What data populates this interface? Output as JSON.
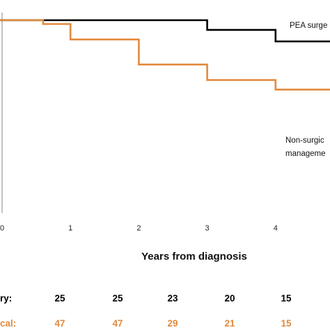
{
  "chart_data": {
    "type": "line",
    "xlabel": "Years from diagnosis",
    "ylabel": "",
    "xlim": [
      0,
      5
    ],
    "ylim": [
      0,
      1
    ],
    "x_ticks": [
      "0",
      "1",
      "2",
      "3",
      "4"
    ],
    "grid": false,
    "series": [
      {
        "name": "PEA surgery",
        "color": "#000000",
        "points": [
          [
            0,
            1.0
          ],
          [
            3,
            1.0
          ],
          [
            3,
            0.95
          ],
          [
            4,
            0.95
          ],
          [
            4,
            0.89
          ],
          [
            5,
            0.89
          ]
        ]
      },
      {
        "name": "Non-surgical management",
        "color": "#e28a3d",
        "points": [
          [
            0,
            1.0
          ],
          [
            0.6,
            1.0
          ],
          [
            0.6,
            0.98
          ],
          [
            1,
            0.98
          ],
          [
            1,
            0.9
          ],
          [
            2,
            0.9
          ],
          [
            2,
            0.77
          ],
          [
            3,
            0.77
          ],
          [
            3,
            0.69
          ],
          [
            4,
            0.69
          ],
          [
            4,
            0.64
          ],
          [
            5,
            0.64
          ]
        ]
      }
    ],
    "annotations": [
      {
        "label": "PEA surgery",
        "visible_text": "PEA surge"
      },
      {
        "label": "Non-surgical management",
        "visible_lines": [
          "Non-surgic",
          "manageme"
        ]
      }
    ],
    "risk_table": {
      "years": [
        0,
        1,
        2,
        3,
        4
      ],
      "rows": [
        {
          "label": "Surgery:",
          "visible_label": "ry:",
          "color": "#000000",
          "values": [
            "25",
            "25",
            "23",
            "20",
            "15"
          ]
        },
        {
          "label": "Non-surgical:",
          "visible_label": "cal:",
          "color": "#e28a3d",
          "values": [
            "47",
            "47",
            "29",
            "21",
            "15"
          ]
        }
      ]
    }
  }
}
